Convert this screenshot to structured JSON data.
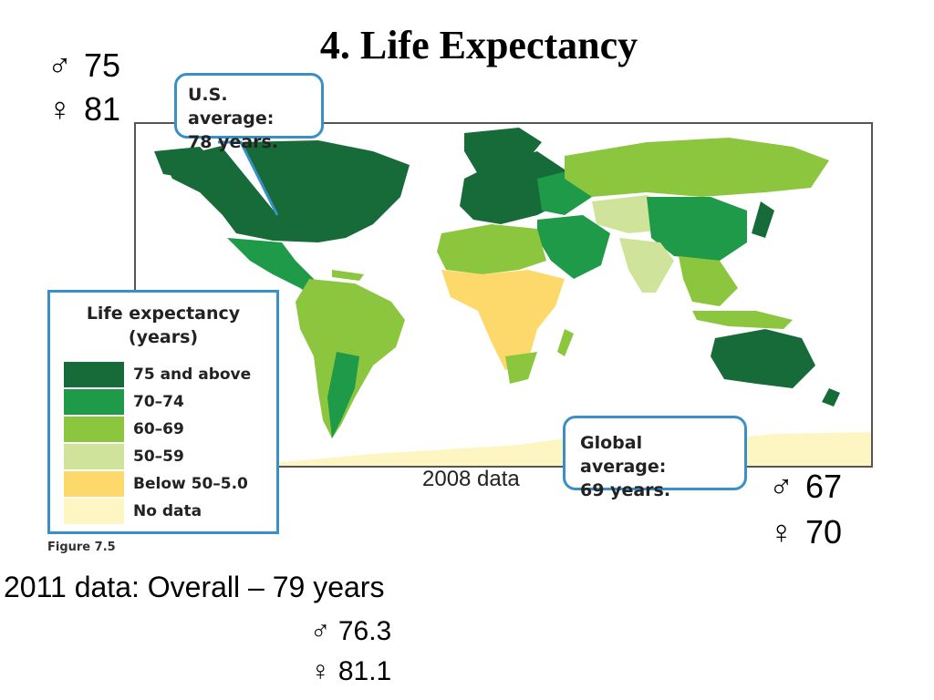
{
  "title": "4. Life Expectancy",
  "us_stats": {
    "male_symbol": "♂",
    "male_value": "75",
    "female_symbol": "♀",
    "female_value": "81"
  },
  "global_stats": {
    "male_symbol": "♂",
    "male_value": "67",
    "female_symbol": "♀",
    "female_value": "70"
  },
  "us_callout": {
    "line1": "U.S. average:",
    "line2": "78 years."
  },
  "global_callout": {
    "line1": "Global average:",
    "line2": "69 years."
  },
  "legend": {
    "title_line1": "Life expectancy",
    "title_line2": "(years)",
    "items": [
      {
        "label": "75 and above",
        "color": "#166b38"
      },
      {
        "label": "70–74",
        "color": "#1f9a48"
      },
      {
        "label": "60–69",
        "color": "#8cc63f"
      },
      {
        "label": "50–59",
        "color": "#cfe39a"
      },
      {
        "label": "Below 50–5.0",
        "color": "#fcd96a"
      },
      {
        "label": "No data",
        "color": "#fdf6c2"
      }
    ]
  },
  "figure_label": "Figure 7.5",
  "data_note": "2008 data",
  "data_2011": {
    "line": "2011 data:  Overall – 79 years",
    "male": "♂ 76.3",
    "female": "♀ 81.1"
  }
}
